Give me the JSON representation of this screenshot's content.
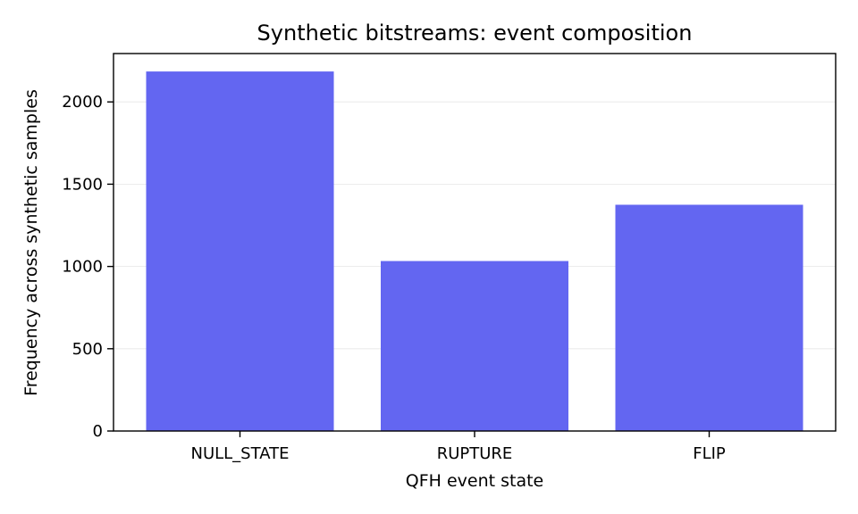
{
  "chart_data": {
    "type": "bar",
    "title": "Synthetic bitstreams: event composition",
    "xlabel": "QFH event state",
    "ylabel": "Frequency across synthetic samples",
    "categories": [
      "NULL_STATE",
      "RUPTURE",
      "FLIP"
    ],
    "values": [
      2185,
      1033,
      1375
    ],
    "ylim": [
      0,
      2294
    ],
    "yticks": [
      0,
      500,
      1000,
      1500,
      2000
    ],
    "grid": true,
    "bar_color": "#6366f1"
  }
}
